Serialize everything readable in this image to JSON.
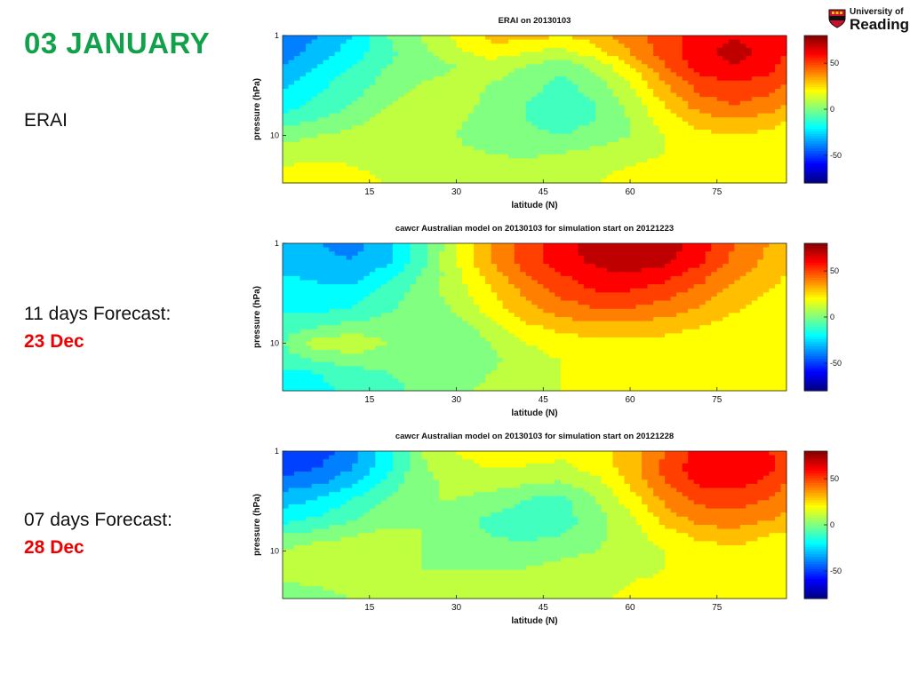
{
  "slide": {
    "title": "03  JANUARY",
    "labels": [
      {
        "line1": "ERAI",
        "line2": ""
      },
      {
        "line1": "11 days Forecast:",
        "line2": "23 Dec"
      },
      {
        "line1": "07 days Forecast:",
        "line2": "28 Dec"
      }
    ]
  },
  "logo": {
    "line1": "University of",
    "line2": "Reading"
  },
  "colors": {
    "title": "#12a14b",
    "date": "#e00000"
  },
  "chart_data": [
    {
      "type": "heatmap",
      "title": "ERAI on 20130103",
      "xlabel": "latitude (N)",
      "ylabel": "pressure (hPa)",
      "xticks": [
        "15",
        "30",
        "45",
        "60",
        "75"
      ],
      "yticks": [
        "1",
        "10"
      ],
      "colorbar_ticks": [
        "50",
        "0",
        "-50"
      ],
      "xlim": [
        0,
        87
      ],
      "zlim": [
        -80,
        80
      ],
      "yscale": "log",
      "x": [
        0,
        6,
        12,
        18,
        24,
        30,
        36,
        42,
        48,
        54,
        60,
        66,
        72,
        78,
        84,
        87
      ],
      "y": [
        1,
        1.5,
        2,
        3,
        5,
        7,
        10,
        15,
        20,
        30
      ],
      "z": [
        [
          -45,
          -35,
          -25,
          -5,
          5,
          18,
          28,
          30,
          25,
          30,
          40,
          50,
          60,
          65,
          60,
          55
        ],
        [
          -40,
          -30,
          -20,
          -8,
          3,
          12,
          20,
          15,
          10,
          20,
          35,
          50,
          62,
          68,
          62,
          55
        ],
        [
          -35,
          -25,
          -15,
          -5,
          0,
          5,
          10,
          5,
          0,
          8,
          25,
          45,
          60,
          65,
          60,
          50
        ],
        [
          -28,
          -18,
          -10,
          -2,
          5,
          8,
          5,
          0,
          -8,
          0,
          15,
          35,
          50,
          55,
          50,
          45
        ],
        [
          -20,
          -12,
          -5,
          5,
          10,
          8,
          3,
          -5,
          -12,
          -5,
          8,
          25,
          40,
          45,
          40,
          35
        ],
        [
          -10,
          -5,
          2,
          8,
          10,
          6,
          2,
          -5,
          -12,
          -5,
          5,
          20,
          30,
          35,
          30,
          25
        ],
        [
          0,
          5,
          8,
          10,
          8,
          5,
          2,
          -2,
          -5,
          0,
          5,
          15,
          22,
          25,
          22,
          18
        ],
        [
          10,
          12,
          12,
          10,
          8,
          6,
          5,
          3,
          5,
          8,
          10,
          15,
          18,
          18,
          15,
          15
        ],
        [
          15,
          16,
          15,
          12,
          10,
          8,
          8,
          8,
          10,
          12,
          15,
          18,
          20,
          20,
          18,
          18
        ],
        [
          18,
          18,
          18,
          15,
          12,
          10,
          10,
          10,
          12,
          15,
          18,
          20,
          22,
          22,
          20,
          20
        ]
      ]
    },
    {
      "type": "heatmap",
      "title": "cawcr Australian model on 20130103 for simulation start on 20121223",
      "xlabel": "latitude (N)",
      "ylabel": "pressure (hPa)",
      "xticks": [
        "15",
        "30",
        "45",
        "60",
        "75"
      ],
      "yticks": [
        "1",
        "10"
      ],
      "colorbar_ticks": [
        "50",
        "0",
        "-50"
      ],
      "xlim": [
        0,
        87
      ],
      "zlim": [
        -80,
        80
      ],
      "yscale": "log",
      "x": [
        0,
        6,
        12,
        18,
        24,
        30,
        36,
        42,
        48,
        54,
        60,
        66,
        72,
        78,
        84,
        87
      ],
      "y": [
        1,
        1.5,
        2,
        3,
        5,
        7,
        10,
        15,
        20,
        30
      ],
      "z": [
        [
          -30,
          -35,
          -38,
          -30,
          -10,
          15,
          35,
          50,
          60,
          70,
          75,
          70,
          60,
          45,
          35,
          30
        ],
        [
          -28,
          -32,
          -35,
          -28,
          -8,
          15,
          35,
          50,
          60,
          68,
          72,
          68,
          58,
          42,
          32,
          28
        ],
        [
          -25,
          -28,
          -30,
          -20,
          -5,
          12,
          30,
          45,
          55,
          62,
          65,
          60,
          50,
          38,
          30,
          25
        ],
        [
          -20,
          -22,
          -22,
          -12,
          0,
          10,
          25,
          38,
          48,
          55,
          55,
          50,
          42,
          32,
          25,
          22
        ],
        [
          -15,
          -15,
          -12,
          -5,
          0,
          5,
          18,
          30,
          38,
          42,
          42,
          38,
          32,
          25,
          20,
          18
        ],
        [
          -10,
          -5,
          0,
          0,
          -2,
          0,
          10,
          22,
          28,
          30,
          30,
          28,
          25,
          20,
          18,
          15
        ],
        [
          -5,
          10,
          12,
          5,
          -2,
          -3,
          5,
          15,
          20,
          22,
          22,
          22,
          20,
          18,
          15,
          15
        ],
        [
          -10,
          -5,
          0,
          0,
          -2,
          -2,
          3,
          10,
          15,
          18,
          20,
          20,
          18,
          15,
          15,
          15
        ],
        [
          -18,
          -15,
          -10,
          -5,
          -3,
          0,
          5,
          10,
          15,
          18,
          20,
          20,
          18,
          16,
          15,
          15
        ],
        [
          -20,
          -18,
          -12,
          -8,
          -3,
          2,
          8,
          12,
          15,
          18,
          20,
          20,
          18,
          16,
          15,
          15
        ]
      ]
    },
    {
      "type": "heatmap",
      "title": "cawcr Australian model on 20130103 for simulation start on 20121228",
      "xlabel": "latitude (N)",
      "ylabel": "pressure (hPa)",
      "xticks": [
        "15",
        "30",
        "45",
        "60",
        "75"
      ],
      "yticks": [
        "1",
        "10"
      ],
      "colorbar_ticks": [
        "50",
        "0",
        "-50"
      ],
      "xlim": [
        0,
        87
      ],
      "zlim": [
        -80,
        80
      ],
      "yscale": "log",
      "x": [
        0,
        6,
        12,
        18,
        24,
        30,
        36,
        42,
        48,
        54,
        60,
        66,
        72,
        78,
        84,
        87
      ],
      "y": [
        1,
        1.5,
        2,
        3,
        5,
        7,
        10,
        15,
        20,
        30
      ],
      "z": [
        [
          -55,
          -50,
          -40,
          -20,
          5,
          15,
          20,
          20,
          18,
          20,
          30,
          45,
          58,
          62,
          55,
          50
        ],
        [
          -50,
          -45,
          -35,
          -18,
          3,
          12,
          15,
          14,
          12,
          18,
          30,
          48,
          62,
          65,
          58,
          50
        ],
        [
          -42,
          -38,
          -28,
          -12,
          2,
          8,
          10,
          8,
          5,
          12,
          28,
          45,
          58,
          60,
          52,
          45
        ],
        [
          -30,
          -25,
          -15,
          -5,
          5,
          5,
          2,
          -5,
          -8,
          5,
          20,
          38,
          48,
          50,
          45,
          40
        ],
        [
          -18,
          -12,
          -5,
          2,
          5,
          0,
          -8,
          -12,
          -10,
          0,
          12,
          28,
          38,
          40,
          35,
          30
        ],
        [
          -5,
          0,
          5,
          8,
          5,
          0,
          -5,
          -8,
          -5,
          2,
          10,
          20,
          28,
          30,
          25,
          22
        ],
        [
          5,
          12,
          10,
          8,
          5,
          3,
          0,
          0,
          2,
          5,
          10,
          15,
          20,
          22,
          20,
          18
        ],
        [
          8,
          10,
          10,
          8,
          5,
          5,
          5,
          5,
          8,
          10,
          12,
          15,
          18,
          18,
          16,
          15
        ],
        [
          5,
          8,
          10,
          10,
          8,
          8,
          8,
          8,
          10,
          12,
          15,
          16,
          18,
          18,
          16,
          15
        ],
        [
          -5,
          0,
          5,
          8,
          10,
          10,
          10,
          10,
          12,
          14,
          16,
          18,
          18,
          18,
          16,
          15
        ]
      ]
    }
  ]
}
